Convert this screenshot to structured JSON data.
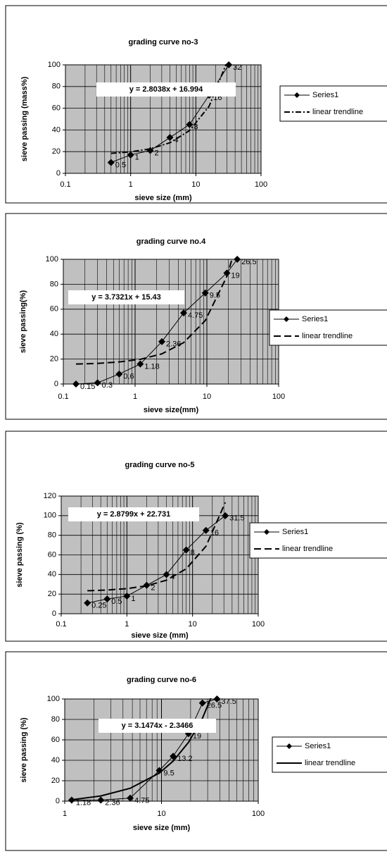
{
  "chart_data": [
    {
      "type": "line",
      "title": "grading curve no-3",
      "x_label": "sieve size  (mm)",
      "y_label": "sieve passing (mass%)",
      "x": [
        0.5,
        1,
        2,
        4,
        8,
        16,
        32
      ],
      "series": [
        {
          "name": "Series1",
          "color": "#000000",
          "values": [
            10,
            17,
            21,
            33,
            45,
            72,
            100
          ]
        },
        {
          "name": "linear trendline",
          "color": "#000000",
          "style": "dash-dot",
          "values": [
            18.4,
            19.8,
            22.6,
            28.2,
            39.4,
            61.9,
            106.7
          ]
        }
      ],
      "annotation": "y = 2.8038x + 16.994",
      "xlim": [
        0.1,
        100
      ],
      "xticks": [
        0.1,
        1,
        10,
        100
      ],
      "ylim": [
        0,
        100
      ],
      "yticks": [
        0,
        20,
        40,
        60,
        80,
        100
      ],
      "log_x": true,
      "grid": true,
      "plot_color": "#c0c0c0",
      "legend": "right"
    },
    {
      "type": "line",
      "title": "grading curve no.4",
      "x_label": "sieve size(mm)",
      "y_label": "sieve passing(%)",
      "x": [
        0.15,
        0.3,
        0.6,
        1.18,
        2.36,
        4.75,
        9.5,
        19,
        26.5
      ],
      "series": [
        {
          "name": "Series1",
          "color": "#000000",
          "values": [
            0,
            1,
            8,
            16,
            34,
            57,
            73,
            89,
            100
          ]
        },
        {
          "name": "linear trendline",
          "color": "#000000",
          "style": "dash",
          "values": [
            16.0,
            16.5,
            17.7,
            19.8,
            24.2,
            33.2,
            50.9,
            86.3,
            114.3
          ]
        }
      ],
      "annotation": "y = 3.7321x + 15.43",
      "xlim": [
        0.1,
        100
      ],
      "xticks": [
        0.1,
        1,
        10,
        100
      ],
      "ylim": [
        0,
        100
      ],
      "yticks": [
        0,
        20,
        40,
        60,
        80,
        100
      ],
      "log_x": true,
      "grid": true,
      "plot_color": "#c0c0c0",
      "legend": "right"
    },
    {
      "type": "line",
      "title": "grading curve no-5",
      "x_label": "sieve size (mm)",
      "y_label": "sieve passing (%)",
      "x": [
        0.25,
        0.5,
        1,
        2,
        4,
        8,
        16,
        31.5
      ],
      "series": [
        {
          "name": "Series1",
          "color": "#000000",
          "values": [
            11,
            15,
            18,
            29,
            40,
            65,
            85,
            100
          ]
        },
        {
          "name": "linear trendline",
          "color": "#000000",
          "style": "dash",
          "values": [
            23.4,
            24.2,
            25.6,
            28.5,
            34.2,
            45.8,
            68.8,
            113.4
          ]
        }
      ],
      "annotation": "y = 2.8799x + 22.731",
      "xlim": [
        0.1,
        100
      ],
      "xticks": [
        0.1,
        1,
        10,
        100
      ],
      "ylim": [
        0,
        120
      ],
      "yticks": [
        0,
        20,
        40,
        60,
        80,
        100,
        120
      ],
      "log_x": true,
      "grid": true,
      "plot_color": "#c0c0c0",
      "legend": "right"
    },
    {
      "type": "line",
      "title": "grading curve no-6",
      "x_label": "sieve size (mm)",
      "y_label": "sieve passing (%)",
      "x": [
        1.18,
        2.36,
        4.75,
        9.5,
        13.2,
        19,
        26.5,
        37.5
      ],
      "series": [
        {
          "name": "Series1",
          "color": "#000000",
          "values": [
            1,
            1,
            3,
            30,
            44,
            66,
            96,
            100
          ]
        },
        {
          "name": "linear trendline",
          "color": "#000000",
          "style": "solid",
          "values": [
            1.4,
            5.1,
            12.6,
            27.5,
            39.2,
            57.5,
            81.1,
            115.7
          ]
        }
      ],
      "annotation": "y = 3.1474x - 2.3466",
      "xlim": [
        1,
        100
      ],
      "xticks": [
        1,
        10,
        100
      ],
      "ylim": [
        0,
        100
      ],
      "yticks": [
        0,
        20,
        40,
        60,
        80,
        100
      ],
      "log_x": true,
      "grid": true,
      "plot_color": "#c0c0c0",
      "legend": "right"
    }
  ]
}
